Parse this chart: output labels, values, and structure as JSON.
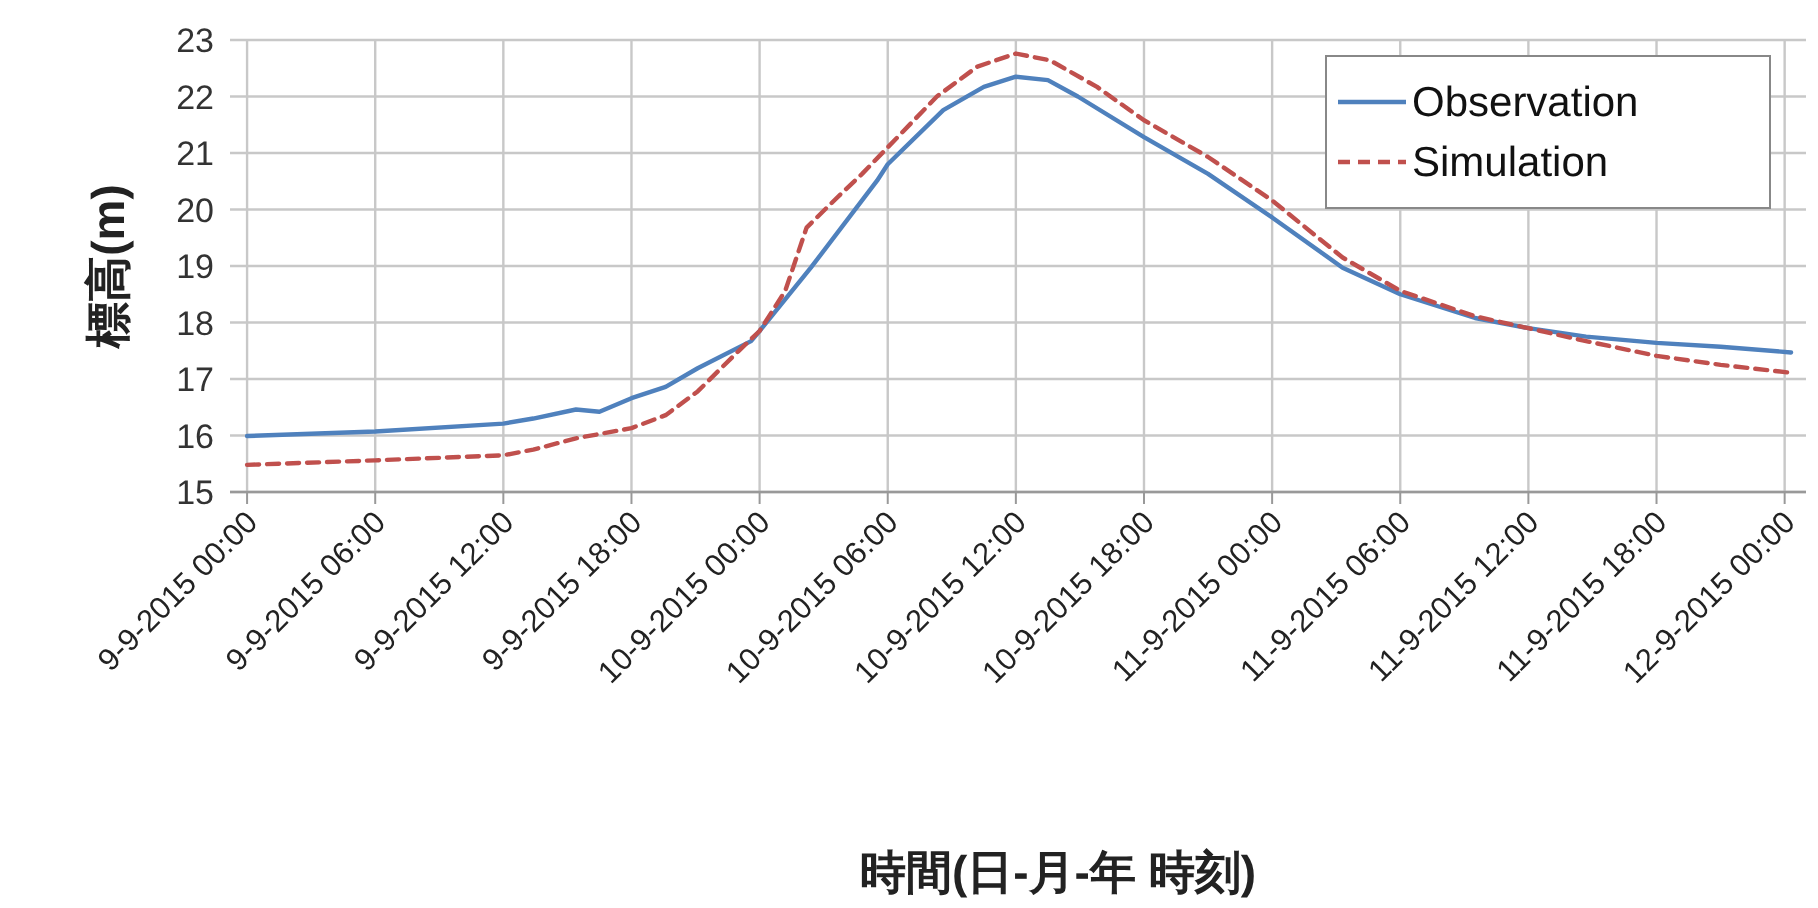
{
  "chart_data": {
    "type": "line",
    "xlabel": "時間(日-月-年 時刻)",
    "ylabel": "標高(m)",
    "xlim": [
      "2015-09-08T23:12",
      "2015-09-12T01:00"
    ],
    "ylim": [
      15,
      23
    ],
    "xticks": [
      {
        "value": "2015-09-09T00:00",
        "label": "9-9-2015 00:00"
      },
      {
        "value": "2015-09-09T06:00",
        "label": "9-9-2015 06:00"
      },
      {
        "value": "2015-09-09T12:00",
        "label": "9-9-2015 12:00"
      },
      {
        "value": "2015-09-09T18:00",
        "label": "9-9-2015 18:00"
      },
      {
        "value": "2015-09-10T00:00",
        "label": "10-9-2015 00:00"
      },
      {
        "value": "2015-09-10T06:00",
        "label": "10-9-2015 06:00"
      },
      {
        "value": "2015-09-10T12:00",
        "label": "10-9-2015 12:00"
      },
      {
        "value": "2015-09-10T18:00",
        "label": "10-9-2015 18:00"
      },
      {
        "value": "2015-09-11T00:00",
        "label": "11-9-2015 00:00"
      },
      {
        "value": "2015-09-11T06:00",
        "label": "11-9-2015 06:00"
      },
      {
        "value": "2015-09-11T12:00",
        "label": "11-9-2015 12:00"
      },
      {
        "value": "2015-09-11T18:00",
        "label": "11-9-2015 18:00"
      },
      {
        "value": "2015-09-12T00:00",
        "label": "12-9-2015 00:00"
      }
    ],
    "yticks": [
      15,
      16,
      17,
      18,
      19,
      20,
      21,
      22,
      23
    ],
    "grid": true,
    "legend": "top right",
    "series": [
      {
        "name": "Observation",
        "color": "#4f81bd",
        "line_style": "solid",
        "x": [
          "2015-09-09T00:00",
          "2015-09-09T06:00",
          "2015-09-09T12:00",
          "2015-09-09T13:24",
          "2015-09-09T15:24",
          "2015-09-09T16:30",
          "2015-09-09T18:00",
          "2015-09-09T19:36",
          "2015-09-09T21:06",
          "2015-09-09T23:36",
          "2015-09-10T00:00",
          "2015-09-10T02:24",
          "2015-09-10T05:30",
          "2015-09-10T06:00",
          "2015-09-10T08:36",
          "2015-09-10T10:30",
          "2015-09-10T12:00",
          "2015-09-10T13:30",
          "2015-09-10T14:54",
          "2015-09-10T18:00",
          "2015-09-10T21:00",
          "2015-09-11T00:00",
          "2015-09-11T03:18",
          "2015-09-11T06:00",
          "2015-09-11T09:30",
          "2015-09-11T12:00",
          "2015-09-11T14:42",
          "2015-09-11T18:00",
          "2015-09-11T21:00",
          "2015-09-12T00:18"
        ],
        "values": [
          15.99,
          16.07,
          16.21,
          16.3,
          16.46,
          16.42,
          16.66,
          16.86,
          17.19,
          17.67,
          17.85,
          18.97,
          20.51,
          20.8,
          21.76,
          22.17,
          22.35,
          22.29,
          22.0,
          21.28,
          20.63,
          19.86,
          18.97,
          18.5,
          18.08,
          17.9,
          17.75,
          17.64,
          17.57,
          17.47
        ]
      },
      {
        "name": "Simulation",
        "color": "#c0504d",
        "line_style": "dashed",
        "x": [
          "2015-09-09T00:00",
          "2015-09-09T06:00",
          "2015-09-09T12:00",
          "2015-09-09T13:24",
          "2015-09-09T15:24",
          "2015-09-09T18:00",
          "2015-09-09T19:36",
          "2015-09-09T21:06",
          "2015-09-09T23:00",
          "2015-09-10T00:00",
          "2015-09-10T01:12",
          "2015-09-10T02:12",
          "2015-09-10T03:36",
          "2015-09-10T04:48",
          "2015-09-10T06:00",
          "2015-09-10T08:18",
          "2015-09-10T10:12",
          "2015-09-10T12:00",
          "2015-09-10T13:36",
          "2015-09-10T15:48",
          "2015-09-10T18:00",
          "2015-09-10T21:00",
          "2015-09-11T00:00",
          "2015-09-11T03:18",
          "2015-09-11T06:00",
          "2015-09-11T09:30",
          "2015-09-11T12:00",
          "2015-09-11T14:42",
          "2015-09-11T18:00",
          "2015-09-11T21:00",
          "2015-09-12T00:18"
        ],
        "values": [
          15.48,
          15.56,
          15.65,
          15.75,
          15.95,
          16.13,
          16.36,
          16.78,
          17.49,
          17.85,
          18.56,
          19.68,
          20.2,
          20.63,
          21.1,
          22.0,
          22.53,
          22.76,
          22.64,
          22.17,
          21.58,
          20.93,
          20.16,
          19.15,
          18.56,
          18.11,
          17.9,
          17.67,
          17.41,
          17.25,
          17.11
        ]
      }
    ]
  }
}
